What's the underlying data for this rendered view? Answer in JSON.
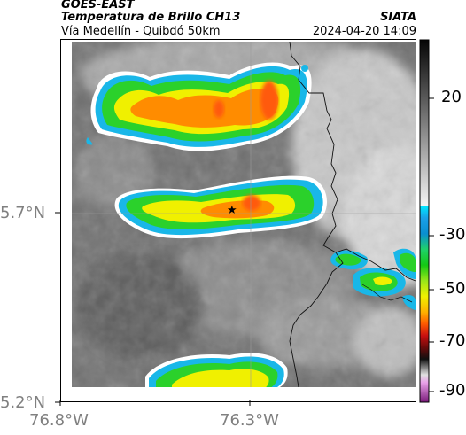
{
  "header": {
    "satellite": "GOES-EAST",
    "product": "Temperatura de Brillo CH13",
    "organization": "SIATA",
    "route": "Vía Medellín - Quibdó 50km",
    "datetime": "2024-04-20 14:09"
  },
  "axes": {
    "lat_ticks": [
      "5.7°N",
      "5.2°N"
    ],
    "lon_ticks": [
      "76.8°W",
      "76.3°W"
    ]
  },
  "colorbar": {
    "ticks": [
      "20",
      "-30",
      "-50",
      "-70",
      "-90"
    ]
  },
  "marker": {
    "symbol": "★"
  },
  "colors": {
    "background_gray": "#7a7a7a",
    "cloud_light": "#d9d9d9",
    "cyan": "#19b7e8",
    "green": "#2bd12b",
    "yellow": "#f0f000",
    "orange": "#ff8c00",
    "red": "#e84010"
  }
}
